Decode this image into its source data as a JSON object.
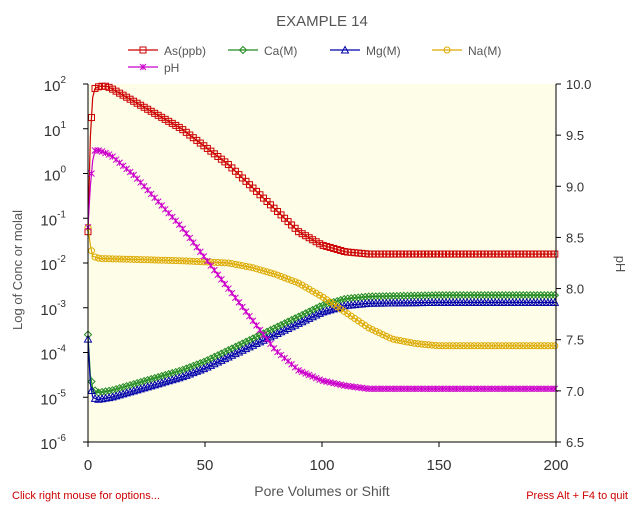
{
  "chart_data": {
    "type": "line",
    "title": "EXAMPLE 14",
    "xlabel": "Pore Volumes or Shift",
    "ylabel_left": "Log of Conc or molal",
    "ylabel_right": "pH",
    "x_ticks": [
      "0",
      "50",
      "100",
      "150",
      "200"
    ],
    "xlim": [
      0,
      200
    ],
    "y_left_log": true,
    "y_left_ticks": [
      {
        "base": "10",
        "exp": "2"
      },
      {
        "base": "10",
        "exp": "1"
      },
      {
        "base": "10",
        "exp": "0"
      },
      {
        "base": "10",
        "exp": "-1"
      },
      {
        "base": "10",
        "exp": "-2"
      },
      {
        "base": "10",
        "exp": "-3"
      },
      {
        "base": "10",
        "exp": "-4"
      },
      {
        "base": "10",
        "exp": "-5"
      },
      {
        "base": "10",
        "exp": "-6"
      }
    ],
    "y_left_range_log10": [
      -6,
      2
    ],
    "y_right_ticks": [
      "10.0",
      "9.5",
      "9.0",
      "8.5",
      "8.0",
      "7.5",
      "7.0",
      "6.5"
    ],
    "ylim_right": [
      6.5,
      10.0
    ],
    "legend_placement": "top",
    "plot_background": "#fdfde8",
    "series": [
      {
        "name": "As(ppb)",
        "axis": "left",
        "color": "#cc0000",
        "marker": "square",
        "x": [
          0,
          1,
          2,
          3,
          5,
          8,
          10,
          20,
          30,
          40,
          50,
          60,
          70,
          80,
          90,
          100,
          110,
          120,
          150,
          200
        ],
        "log10_y": [
          -1.3,
          0.8,
          1.7,
          1.9,
          1.95,
          1.95,
          1.9,
          1.6,
          1.3,
          1.0,
          0.6,
          0.2,
          -0.3,
          -0.8,
          -1.3,
          -1.6,
          -1.75,
          -1.8,
          -1.8,
          -1.8
        ]
      },
      {
        "name": "Ca(M)",
        "axis": "left",
        "color": "#228b22",
        "marker": "diamond",
        "x": [
          0,
          1,
          2,
          4,
          10,
          20,
          30,
          40,
          50,
          60,
          70,
          80,
          90,
          100,
          110,
          120,
          150,
          200
        ],
        "log10_y": [
          -3.6,
          -4.5,
          -4.8,
          -4.9,
          -4.85,
          -4.7,
          -4.55,
          -4.4,
          -4.2,
          -3.95,
          -3.7,
          -3.45,
          -3.2,
          -2.95,
          -2.8,
          -2.75,
          -2.72,
          -2.72
        ]
      },
      {
        "name": "Mg(M)",
        "axis": "left",
        "color": "#0000aa",
        "marker": "triangle",
        "x": [
          0,
          1,
          2,
          4,
          10,
          20,
          30,
          40,
          50,
          60,
          70,
          80,
          90,
          100,
          110,
          120,
          150,
          200
        ],
        "log10_y": [
          -3.7,
          -4.7,
          -5.0,
          -5.05,
          -5.0,
          -4.85,
          -4.7,
          -4.55,
          -4.35,
          -4.1,
          -3.85,
          -3.6,
          -3.35,
          -3.1,
          -2.95,
          -2.9,
          -2.88,
          -2.88
        ]
      },
      {
        "name": "Na(M)",
        "axis": "left",
        "color": "#ddaa00",
        "marker": "circle",
        "x": [
          0,
          1,
          2,
          5,
          20,
          40,
          60,
          70,
          80,
          90,
          100,
          110,
          120,
          130,
          140,
          150,
          200
        ],
        "log10_y": [
          -1.2,
          -1.6,
          -1.85,
          -1.9,
          -1.92,
          -1.95,
          -2.0,
          -2.1,
          -2.25,
          -2.45,
          -2.75,
          -3.1,
          -3.45,
          -3.7,
          -3.8,
          -3.85,
          -3.85
        ]
      },
      {
        "name": "pH",
        "axis": "right",
        "color": "#cc00cc",
        "marker": "x",
        "x": [
          0,
          1,
          2,
          3,
          5,
          10,
          20,
          30,
          40,
          50,
          60,
          70,
          80,
          90,
          100,
          110,
          120,
          150,
          200
        ],
        "y": [
          8.6,
          9.0,
          9.25,
          9.35,
          9.35,
          9.3,
          9.1,
          8.85,
          8.6,
          8.3,
          8.0,
          7.7,
          7.4,
          7.2,
          7.1,
          7.05,
          7.02,
          7.02,
          7.02
        ]
      }
    ]
  },
  "status": {
    "left": "Click right mouse for options...",
    "right": "Press Alt + F4 to quit"
  }
}
